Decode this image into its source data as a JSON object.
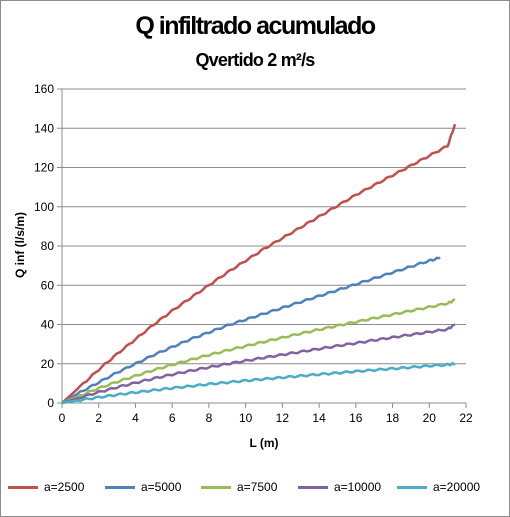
{
  "chart_data": {
    "type": "line",
    "title": "Q infiltrado acumulado",
    "subtitle": "Qvertido 2 m²/s",
    "xlabel": "L (m)",
    "ylabel": "Q inf (l/s/m)",
    "xlim": [
      0,
      22
    ],
    "ylim": [
      0,
      160
    ],
    "xticks": [
      0,
      2,
      4,
      6,
      8,
      10,
      12,
      14,
      16,
      18,
      20,
      22
    ],
    "yticks": [
      0,
      20,
      40,
      60,
      80,
      100,
      120,
      140,
      160
    ],
    "grid": "horizontal",
    "legend_position": "bottom",
    "x": [
      0,
      1,
      2,
      3,
      4,
      5,
      6,
      7,
      8,
      9,
      10,
      11,
      12,
      13,
      14,
      15,
      16,
      17,
      18,
      19,
      20,
      21
    ],
    "series": [
      {
        "name": "a=2500",
        "color": "#c0504d",
        "values": [
          0,
          8.5,
          17,
          25,
          32.5,
          40,
          47,
          53.5,
          60,
          66.5,
          72.5,
          78.5,
          84,
          89.5,
          95,
          100.5,
          106,
          111,
          116,
          121,
          126,
          131
        ],
        "end": [
          21.4,
          142
        ]
      },
      {
        "name": "a=5000",
        "color": "#4f81bd",
        "values": [
          0,
          5.5,
          10.5,
          15.5,
          20,
          24.5,
          28.5,
          32.5,
          36,
          39.5,
          42.5,
          45.5,
          48.5,
          51.5,
          54.5,
          57.5,
          60.5,
          63.5,
          66.5,
          69.5,
          72.5,
          75
        ],
        "end": [
          20.6,
          74
        ]
      },
      {
        "name": "a=7500",
        "color": "#9bbb59",
        "values": [
          0,
          3.8,
          7.5,
          10.8,
          13.8,
          16.8,
          19.5,
          22,
          24.5,
          26.8,
          29,
          31.2,
          33.3,
          35.4,
          37.4,
          39.4,
          41.3,
          43.2,
          45.1,
          47,
          48.9,
          50.8
        ],
        "end": [
          21.4,
          52.5
        ]
      },
      {
        "name": "a=10000",
        "color": "#8064a2",
        "values": [
          0,
          2.8,
          5.5,
          8,
          10.3,
          12.5,
          14.5,
          16.4,
          18.2,
          19.9,
          21.5,
          23.1,
          24.6,
          26.1,
          27.6,
          29.1,
          30.5,
          32,
          33.4,
          34.8,
          36.2,
          37.6
        ],
        "end": [
          21.4,
          40
        ]
      },
      {
        "name": "a=20000",
        "color": "#4bacc6",
        "values": [
          0,
          1.5,
          2.9,
          4.2,
          5.4,
          6.5,
          7.6,
          8.6,
          9.6,
          10.5,
          11.4,
          12.2,
          13,
          13.8,
          14.6,
          15.3,
          16.1,
          16.8,
          17.5,
          18.2,
          18.9,
          19.5
        ],
        "end": [
          21.4,
          20
        ]
      }
    ]
  }
}
